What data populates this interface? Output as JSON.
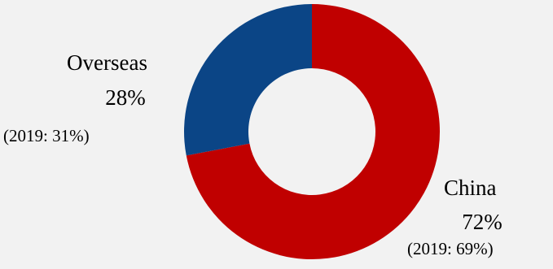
{
  "chart_data": {
    "type": "pie",
    "variant": "donut",
    "title": "",
    "slices": [
      {
        "label": "China",
        "percent_label": "72%",
        "value": 72,
        "prior_label": "(2019: 69%)",
        "color": "#c00000"
      },
      {
        "label": "Overseas",
        "percent_label": "28%",
        "value": 28,
        "prior_label": "(2019: 31%)",
        "color": "#0b4586"
      }
    ],
    "start_angle": "12 o'clock",
    "direction": "clockwise",
    "legend": "none"
  }
}
